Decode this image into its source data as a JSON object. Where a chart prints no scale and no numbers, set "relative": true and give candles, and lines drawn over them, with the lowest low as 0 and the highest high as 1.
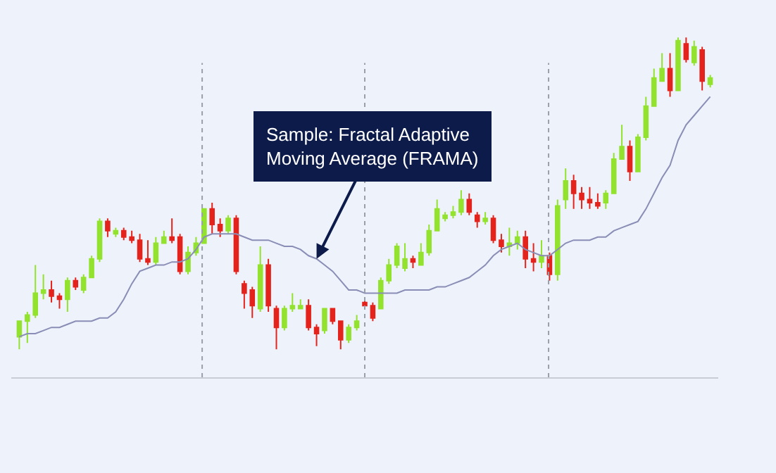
{
  "chart_data": {
    "type": "candlestick",
    "relative": true,
    "tick_labels": false,
    "legend": false,
    "grid": false,
    "categories": [
      null,
      null,
      null,
      null,
      null,
      null,
      null,
      null,
      null,
      null,
      null,
      null,
      null,
      null,
      null,
      null,
      null,
      null,
      null,
      null,
      null,
      null,
      null,
      null,
      null,
      null,
      null,
      null,
      null,
      null,
      null,
      null,
      null,
      null,
      null,
      null,
      null,
      null,
      null,
      null,
      null,
      null,
      null,
      null,
      null,
      null,
      null,
      null,
      null,
      null,
      null,
      null,
      null,
      null,
      null,
      null,
      null,
      null,
      null,
      null,
      null,
      null,
      null,
      null,
      null,
      null,
      null,
      null,
      null,
      null,
      null,
      null,
      null,
      null,
      null,
      null,
      null,
      null,
      null,
      null,
      null,
      null,
      null,
      null,
      null,
      null,
      null
    ],
    "ohlc": [
      [
        0.04,
        0.09,
        0,
        0.09
      ],
      [
        0.09,
        0.12,
        0.02,
        0.11
      ],
      [
        0.11,
        0.27,
        0.1,
        0.18
      ],
      [
        0.18,
        0.24,
        0.16,
        0.19
      ],
      [
        0.19,
        0.22,
        0.15,
        0.17
      ],
      [
        0.17,
        0.18,
        0.13,
        0.16
      ],
      [
        0.16,
        0.23,
        0.12,
        0.22
      ],
      [
        0.22,
        0.23,
        0.19,
        0.2
      ],
      [
        0.19,
        0.24,
        0.18,
        0.23
      ],
      [
        0.23,
        0.3,
        0.23,
        0.29
      ],
      [
        0.29,
        0.42,
        0.28,
        0.41
      ],
      [
        0.41,
        0.42,
        0.36,
        0.38
      ],
      [
        0.37,
        0.39,
        0.36,
        0.38
      ],
      [
        0.38,
        0.39,
        0.35,
        0.36
      ],
      [
        0.36,
        0.38,
        0.34,
        0.35
      ],
      [
        0.35,
        0.37,
        0.28,
        0.29
      ],
      [
        0.29,
        0.35,
        0.27,
        0.28
      ],
      [
        0.28,
        0.36,
        0.27,
        0.34
      ],
      [
        0.34,
        0.38,
        0.34,
        0.36
      ],
      [
        0.36,
        0.42,
        0.34,
        0.35
      ],
      [
        0.36,
        0.37,
        0.24,
        0.25
      ],
      [
        0.25,
        0.33,
        0.24,
        0.31
      ],
      [
        0.31,
        0.36,
        0.3,
        0.34
      ],
      [
        0.34,
        0.45,
        0.34,
        0.45
      ],
      [
        0.45,
        0.47,
        0.37,
        0.4
      ],
      [
        0.4,
        0.42,
        0.36,
        0.38
      ],
      [
        0.38,
        0.43,
        0.37,
        0.42
      ],
      [
        0.42,
        0.43,
        0.24,
        0.25
      ],
      [
        0.21,
        0.22,
        0.13,
        0.18
      ],
      [
        0.19,
        0.2,
        0.1,
        0.14
      ],
      [
        0.13,
        0.33,
        0.12,
        0.27
      ],
      [
        0.27,
        0.29,
        0.12,
        0.14
      ],
      [
        0.13,
        0.14,
        0,
        0.07
      ],
      [
        0.07,
        0.14,
        0.06,
        0.13
      ],
      [
        0.13,
        0.18,
        0.12,
        0.14
      ],
      [
        0.13,
        0.16,
        0.13,
        0.14
      ],
      [
        0.14,
        0.16,
        0.06,
        0.07
      ],
      [
        0.07,
        0.08,
        0.01,
        0.05
      ],
      [
        0.06,
        0.13,
        0.05,
        0.13
      ],
      [
        0.13,
        0.13,
        0.08,
        0.09
      ],
      [
        0.09,
        0.09,
        0,
        0.03
      ],
      [
        0.03,
        0.08,
        0.02,
        0.07
      ],
      [
        0.07,
        0.11,
        0.06,
        0.09
      ],
      [
        0.15,
        0.16,
        0.13,
        0.14
      ],
      [
        0.14,
        0.15,
        0.09,
        0.1
      ],
      [
        0.13,
        0.23,
        0.13,
        0.22
      ],
      [
        0.22,
        0.29,
        0.21,
        0.27
      ],
      [
        0.27,
        0.34,
        0.26,
        0.33
      ],
      [
        0.26,
        0.34,
        0.25,
        0.29
      ],
      [
        0.29,
        0.3,
        0.26,
        0.28
      ],
      [
        0.27,
        0.34,
        0.27,
        0.31
      ],
      [
        0.31,
        0.4,
        0.3,
        0.38
      ],
      [
        0.38,
        0.48,
        0.38,
        0.45
      ],
      [
        0.42,
        0.44,
        0.41,
        0.43
      ],
      [
        0.43,
        0.46,
        0.42,
        0.44
      ],
      [
        0.44,
        0.51,
        0.43,
        0.48
      ],
      [
        0.48,
        0.5,
        0.43,
        0.44
      ],
      [
        0.43,
        0.44,
        0.39,
        0.41
      ],
      [
        0.41,
        0.44,
        0.4,
        0.42
      ],
      [
        0.42,
        0.43,
        0.34,
        0.35
      ],
      [
        0.35,
        0.37,
        0.31,
        0.33
      ],
      [
        0.33,
        0.39,
        0.3,
        0.34
      ],
      [
        0.34,
        0.38,
        0.32,
        0.36
      ],
      [
        0.36,
        0.38,
        0.26,
        0.29
      ],
      [
        0.29,
        0.34,
        0.25,
        0.28
      ],
      [
        0.28,
        0.35,
        0.26,
        0.3
      ],
      [
        0.3,
        0.31,
        0.22,
        0.24
      ],
      [
        0.24,
        0.48,
        0.22,
        0.46
      ],
      [
        0.48,
        0.58,
        0.45,
        0.54
      ],
      [
        0.54,
        0.56,
        0.45,
        0.5
      ],
      [
        0.5,
        0.52,
        0.45,
        0.48
      ],
      [
        0.48,
        0.52,
        0.45,
        0.47
      ],
      [
        0.47,
        0.5,
        0.45,
        0.46
      ],
      [
        0.47,
        0.51,
        0.45,
        0.5
      ],
      [
        0.5,
        0.63,
        0.5,
        0.61
      ],
      [
        0.61,
        0.72,
        0.61,
        0.65
      ],
      [
        0.65,
        0.67,
        0.54,
        0.57
      ],
      [
        0.57,
        0.69,
        0.57,
        0.68
      ],
      [
        0.68,
        0.81,
        0.67,
        0.78
      ],
      [
        0.78,
        0.9,
        0.78,
        0.87
      ],
      [
        0.86,
        0.95,
        0.86,
        0.9
      ],
      [
        0.9,
        0.95,
        0.81,
        0.83
      ],
      [
        0.83,
        1,
        0.83,
        0.99
      ],
      [
        0.98,
        1,
        0.92,
        0.93
      ],
      [
        0.92,
        0.99,
        0.91,
        0.97
      ],
      [
        0.96,
        0.97,
        0.83,
        0.86
      ],
      [
        0.85,
        0.88,
        0.84,
        0.87
      ]
    ],
    "colors": [
      "#92e22e",
      "#92e22e",
      "#92e22e",
      "#92e22e",
      "#e3231c",
      "#e3231c",
      "#92e22e",
      "#e3231c",
      "#92e22e",
      "#92e22e",
      "#92e22e",
      "#e3231c",
      "#92e22e",
      "#e3231c",
      "#e3231c",
      "#e3231c",
      "#e3231c",
      "#92e22e",
      "#92e22e",
      "#e3231c",
      "#e3231c",
      "#92e22e",
      "#92e22e",
      "#92e22e",
      "#e3231c",
      "#e3231c",
      "#92e22e",
      "#e3231c",
      "#e3231c",
      "#e3231c",
      "#92e22e",
      "#e3231c",
      "#e3231c",
      "#92e22e",
      "#92e22e",
      "#92e22e",
      "#e3231c",
      "#e3231c",
      "#92e22e",
      "#e3231c",
      "#e3231c",
      "#92e22e",
      "#92e22e",
      "#e3231c",
      "#e3231c",
      "#92e22e",
      "#92e22e",
      "#92e22e",
      "#92e22e",
      "#e3231c",
      "#92e22e",
      "#92e22e",
      "#92e22e",
      "#92e22e",
      "#92e22e",
      "#92e22e",
      "#e3231c",
      "#e3231c",
      "#92e22e",
      "#e3231c",
      "#e3231c",
      "#92e22e",
      "#92e22e",
      "#e3231c",
      "#e3231c",
      "#92e22e",
      "#e3231c",
      "#92e22e",
      "#92e22e",
      "#e3231c",
      "#e3231c",
      "#e3231c",
      "#e3231c",
      "#92e22e",
      "#92e22e",
      "#92e22e",
      "#e3231c",
      "#92e22e",
      "#92e22e",
      "#92e22e",
      "#92e22e",
      "#e3231c",
      "#92e22e",
      "#e3231c",
      "#92e22e",
      "#e3231c",
      "#92e22e"
    ],
    "series": [
      {
        "type": "line",
        "color": "#8a8db5",
        "values": [
          0.04,
          0.05,
          0.05,
          0.06,
          0.07,
          0.07,
          0.08,
          0.09,
          0.09,
          0.09,
          0.1,
          0.1,
          0.12,
          0.16,
          0.21,
          0.25,
          0.26,
          0.27,
          0.27,
          0.28,
          0.28,
          0.29,
          0.32,
          0.36,
          0.37,
          0.37,
          0.37,
          0.37,
          0.36,
          0.35,
          0.35,
          0.35,
          0.34,
          0.33,
          0.33,
          0.32,
          0.3,
          0.29,
          0.27,
          0.25,
          0.22,
          0.19,
          0.19,
          0.18,
          0.18,
          0.18,
          0.18,
          0.18,
          0.19,
          0.19,
          0.19,
          0.19,
          0.2,
          0.2,
          0.21,
          0.22,
          0.23,
          0.25,
          0.27,
          0.3,
          0.32,
          0.33,
          0.34,
          0.32,
          0.31,
          0.3,
          0.3,
          0.32,
          0.34,
          0.35,
          0.35,
          0.35,
          0.36,
          0.36,
          0.38,
          0.39,
          0.4,
          0.41,
          0.45,
          0.5,
          0.55,
          0.59,
          0.67,
          0.72,
          0.75,
          0.78,
          0.81
        ]
      }
    ],
    "annotations": [
      "Sample: Fractal Adaptive Moving Average (FRAMA)"
    ]
  }
}
